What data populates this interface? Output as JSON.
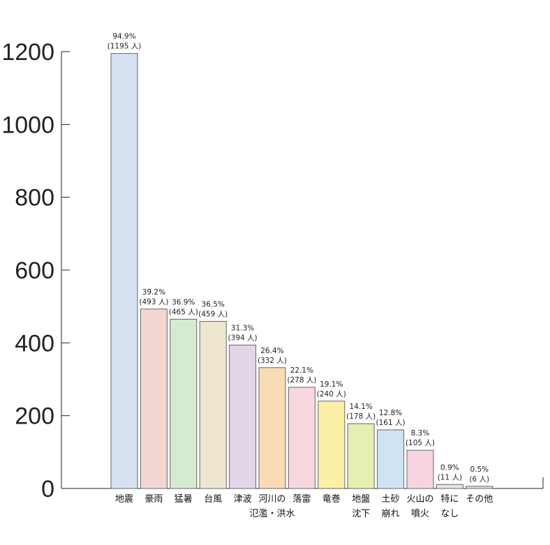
{
  "chart_data": {
    "type": "bar",
    "title": "",
    "xlabel": "",
    "ylabel": "",
    "ylim": [
      0,
      1200
    ],
    "yticks": [
      "0",
      "200",
      "400",
      "600",
      "800",
      "1000",
      "1200"
    ],
    "grid": false,
    "categories": [
      [
        "地震"
      ],
      [
        "豪雨"
      ],
      [
        "猛暑"
      ],
      [
        "台風"
      ],
      [
        "津波"
      ],
      [
        "河川の",
        "氾濫・洪水"
      ],
      [
        "落雷"
      ],
      [
        "竜巻"
      ],
      [
        "地盤",
        "沈下"
      ],
      [
        "土砂",
        "崩れ"
      ],
      [
        "火山の",
        "噴火"
      ],
      [
        "特に",
        "なし"
      ],
      [
        "その他"
      ]
    ],
    "values": [
      1195,
      493,
      465,
      459,
      394,
      332,
      278,
      240,
      178,
      161,
      105,
      11,
      6
    ],
    "percent_labels": [
      "94.9%",
      "39.2%",
      "36.9%",
      "36.5%",
      "31.3%",
      "26.4%",
      "22.1%",
      "19.1%",
      "14.1%",
      "12.8%",
      "8.3%",
      "0.9%",
      "0.5%"
    ],
    "count_labels": [
      "(1195 人)",
      "(493 人)",
      "(465 人)",
      "(459 人)",
      "(394 人)",
      "(332 人)",
      "(278 人)",
      "(240 人)",
      "(178 人)",
      "(161 人)",
      "(105 人)",
      "(11 人)",
      "(6 人)"
    ],
    "bar_colors": [
      "#d6e1f1",
      "#f2d6d3",
      "#d6eacf",
      "#efe6cf",
      "#e2d6e8",
      "#f9dbb6",
      "#f8d8df",
      "#fcefa6",
      "#e5efb0",
      "#cfe3f2",
      "#f7d5e0",
      "#ece3dc",
      "#d6e6f1"
    ],
    "bar_stroke": "#666666",
    "axis_color": "#222222"
  }
}
